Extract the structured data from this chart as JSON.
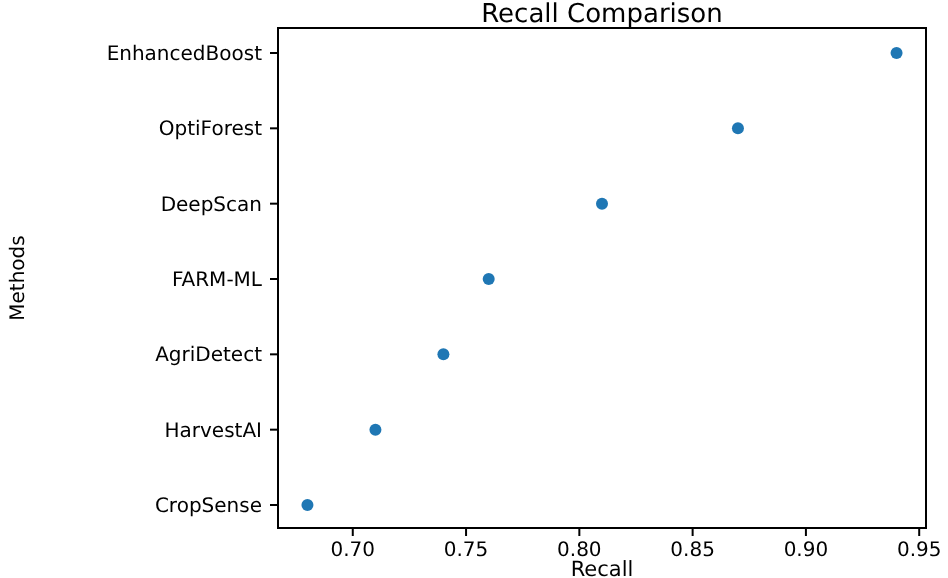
{
  "chart_data": {
    "type": "scatter",
    "orientation": "horizontal",
    "title": "Recall Comparison",
    "xlabel": "Recall",
    "ylabel": "Methods",
    "categories": [
      "EnhancedBoost",
      "OptiForest",
      "DeepScan",
      "FARM-ML",
      "AgriDetect",
      "HarvestAI",
      "CropSense"
    ],
    "values": [
      0.94,
      0.87,
      0.81,
      0.76,
      0.74,
      0.71,
      0.68
    ],
    "color": "#1f77b4",
    "marker": "circle",
    "xlim": [
      0.667,
      0.953
    ],
    "xticks": [
      {
        "value": 0.7,
        "label": "0.70"
      },
      {
        "value": 0.75,
        "label": "0.75"
      },
      {
        "value": 0.8,
        "label": "0.80"
      },
      {
        "value": 0.85,
        "label": "0.85"
      },
      {
        "value": 0.9,
        "label": "0.90"
      },
      {
        "value": 0.95,
        "label": "0.95"
      }
    ],
    "grid": false
  }
}
